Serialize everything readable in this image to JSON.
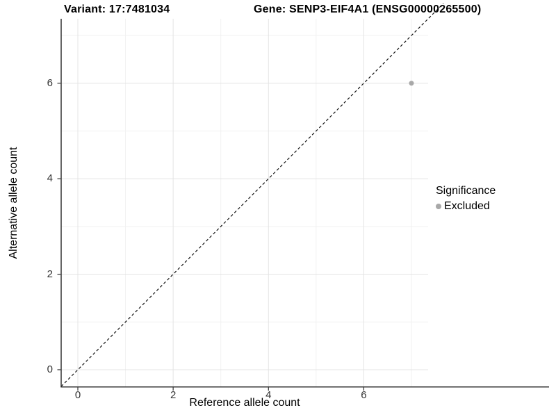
{
  "header": {
    "variant_title": "Variant: 17:7481034",
    "gene_title": "Gene: SENP3-EIF4A1 (ENSG00000265500)"
  },
  "chart_data": {
    "type": "scatter",
    "title_left": "Variant: 17:7481034",
    "title_right": "Gene: SENP3-EIF4A1 (ENSG00000265500)",
    "xlabel": "Reference allele count",
    "ylabel": "Alternative allele count",
    "x_ticks": [
      0,
      2,
      4,
      6
    ],
    "y_ticks": [
      0,
      2,
      4,
      6
    ],
    "x_minor_ticks": [
      1,
      3,
      5,
      7
    ],
    "y_minor_ticks": [
      1,
      3,
      5,
      7
    ],
    "xlim": [
      -0.35,
      7.35
    ],
    "ylim": [
      -0.35,
      7.35
    ],
    "grid": true,
    "identity_line": {
      "slope": 1,
      "intercept": 0,
      "style": "dashed",
      "color": "#111111"
    },
    "series": [
      {
        "name": "Excluded",
        "points": [
          {
            "x": 7,
            "y": 6
          }
        ],
        "color": "#a8a8a8"
      }
    ],
    "legend": {
      "title": "Significance",
      "position": "right",
      "entries": [
        {
          "label": "Excluded",
          "color": "#a8a8a8"
        }
      ]
    },
    "colors": {
      "major_grid": "#e4e4e4",
      "minor_grid": "#f1f1f1",
      "axis_line": "#333333",
      "tick_mark": "#333333",
      "background": "#ffffff"
    }
  }
}
